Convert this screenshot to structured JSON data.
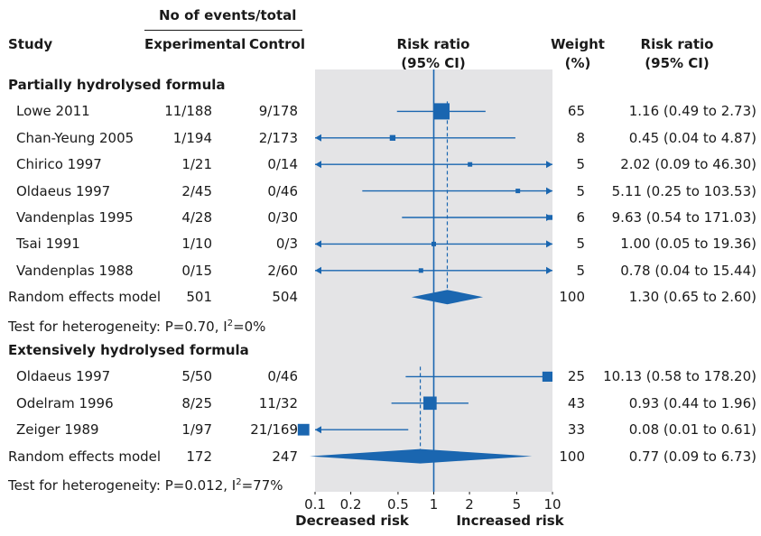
{
  "header": {
    "events_group": "No of events/total",
    "study": "Study",
    "experimental": "Experimental",
    "control": "Control",
    "rr_plot_line1": "Risk ratio",
    "rr_plot_line2": "(95% CI)",
    "weight_line1": "Weight",
    "weight_line2": "(%)",
    "rr_text_line1": "Risk ratio",
    "rr_text_line2": "(95% CI)"
  },
  "axis_footer": {
    "decreased": "Decreased risk",
    "increased": "Increased risk"
  },
  "colors": {
    "accent": "#1a66b0",
    "panel": "#e4e4e6",
    "text": "#1a1a1a"
  },
  "chart_data": {
    "type": "forest",
    "xscale": "log",
    "xlim": [
      0.1,
      10
    ],
    "xticks": [
      0.1,
      0.2,
      0.5,
      1,
      2,
      5,
      10
    ],
    "xtick_labels": [
      "0.1",
      "0.2",
      "0.5",
      "1",
      "2",
      "5",
      "10"
    ],
    "reference_line": 1,
    "groups": [
      {
        "title": "Partially hydrolysed formula",
        "studies": [
          {
            "study": "Lowe 2011",
            "exp": "11/188",
            "ctrl": "9/178",
            "rr": 1.16,
            "lo": 0.49,
            "hi": 2.73,
            "weight": "65",
            "ci_text": "1.16 (0.49 to 2.73)"
          },
          {
            "study": "Chan-Yeung 2005",
            "exp": "1/194",
            "ctrl": "2/173",
            "rr": 0.45,
            "lo": 0.04,
            "hi": 4.87,
            "weight": "8",
            "ci_text": "0.45 (0.04 to 4.87)"
          },
          {
            "study": "Chirico 1997",
            "exp": "1/21",
            "ctrl": "0/14",
            "rr": 2.02,
            "lo": 0.09,
            "hi": 46.3,
            "weight": "5",
            "ci_text": "2.02 (0.09 to 46.30)"
          },
          {
            "study": "Oldaeus 1997",
            "exp": "2/45",
            "ctrl": "0/46",
            "rr": 5.11,
            "lo": 0.25,
            "hi": 103.53,
            "weight": "5",
            "ci_text": "5.11 (0.25 to 103.53)"
          },
          {
            "study": "Vandenplas 1995",
            "exp": "4/28",
            "ctrl": "0/30",
            "rr": 9.63,
            "lo": 0.54,
            "hi": 171.03,
            "weight": "6",
            "ci_text": "9.63 (0.54 to 171.03)"
          },
          {
            "study": "Tsai 1991",
            "exp": "1/10",
            "ctrl": "0/3",
            "rr": 1.0,
            "lo": 0.05,
            "hi": 19.36,
            "weight": "5",
            "ci_text": "1.00 (0.05 to 19.36)"
          },
          {
            "study": "Vandenplas 1988",
            "exp": "0/15",
            "ctrl": "2/60",
            "rr": 0.78,
            "lo": 0.04,
            "hi": 15.44,
            "weight": "5",
            "ci_text": "0.78 (0.04 to 15.44)"
          }
        ],
        "pooled": {
          "label": "Random effects model",
          "exp": "501",
          "ctrl": "504",
          "rr": 1.3,
          "lo": 0.65,
          "hi": 2.6,
          "weight": "100",
          "ci_text": "1.30 (0.65 to 2.60)"
        },
        "heterogeneity": {
          "prefix": "Test for heterogeneity: P=0.70, I",
          "sup": "2",
          "suffix": "=0%"
        }
      },
      {
        "title": "Extensively hydrolysed formula",
        "studies": [
          {
            "study": "Oldaeus 1997",
            "exp": "5/50",
            "ctrl": "0/46",
            "rr": 10.13,
            "lo": 0.58,
            "hi": 178.2,
            "weight": "25",
            "ci_text": "10.13 (0.58 to 178.20)"
          },
          {
            "study": "Odelram 1996",
            "exp": "8/25",
            "ctrl": "11/32",
            "rr": 0.93,
            "lo": 0.44,
            "hi": 1.96,
            "weight": "43",
            "ci_text": "0.93 (0.44 to 1.96)"
          },
          {
            "study": "Zeiger 1989",
            "exp": "1/97",
            "ctrl": "21/169",
            "rr": 0.08,
            "lo": 0.01,
            "hi": 0.61,
            "weight": "33",
            "ci_text": "0.08 (0.01 to 0.61)"
          }
        ],
        "pooled": {
          "label": "Random effects model",
          "exp": "172",
          "ctrl": "247",
          "rr": 0.77,
          "lo": 0.09,
          "hi": 6.73,
          "weight": "100",
          "ci_text": "0.77 (0.09 to 6.73)"
        },
        "heterogeneity": {
          "prefix": "Test for heterogeneity: P=0.012, I",
          "sup": "2",
          "suffix": "=77%"
        }
      }
    ]
  }
}
